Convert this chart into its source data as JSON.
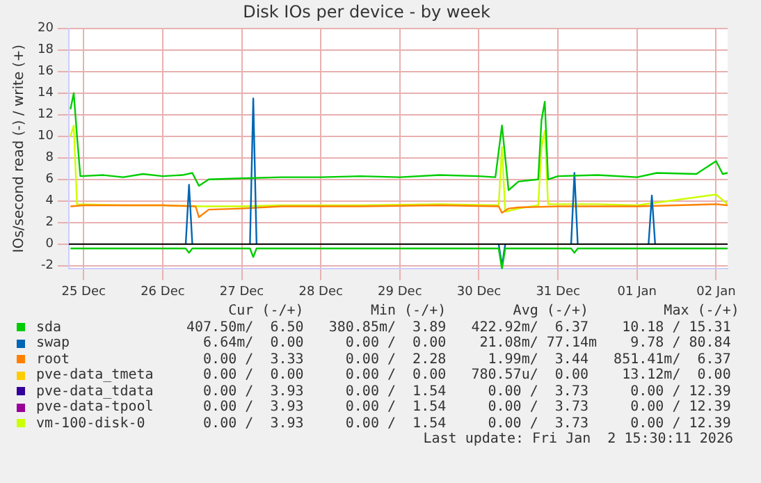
{
  "chart_data": {
    "type": "line",
    "title": "Disk IOs per device - by week",
    "ylabel": "IOs/second read (-) / write (+)",
    "xlim": [
      "2025-12-25T07:30",
      "2026-01-02T15:30"
    ],
    "xticks": [
      {
        "value": "2025-12-25T12:00",
        "label": "25 Dec"
      },
      {
        "value": "2025-12-26T12:00",
        "label": "26 Dec"
      },
      {
        "value": "2025-12-27T12:00",
        "label": "27 Dec"
      },
      {
        "value": "2025-12-28T12:00",
        "label": "28 Dec"
      },
      {
        "value": "2025-12-29T12:00",
        "label": "29 Dec"
      },
      {
        "value": "2025-12-30T12:00",
        "label": "30 Dec"
      },
      {
        "value": "2025-12-31T12:00",
        "label": "31 Dec"
      },
      {
        "value": "2026-01-01T12:00",
        "label": "01 Jan"
      },
      {
        "value": "2026-01-02T12:00",
        "label": "02 Jan"
      }
    ],
    "ylim": [
      -2.3,
      20
    ],
    "yticks": [
      -2,
      0,
      2,
      4,
      6,
      8,
      10,
      12,
      14,
      16,
      18,
      20
    ],
    "grid": true,
    "legend": "bottom",
    "marker": "none",
    "line_style": "solid",
    "ref_lines": [
      {
        "axis": "y",
        "value": 0,
        "color": "#000000"
      }
    ],
    "series": [
      {
        "name": "sda",
        "color": "#00cc00",
        "x": [
          "2025-12-25T08:00",
          "2025-12-25T09:00",
          "2025-12-25T10:00",
          "2025-12-25T11:00",
          "2025-12-25T18:00",
          "2025-12-26T00:00",
          "2025-12-26T06:00",
          "2025-12-26T12:00",
          "2025-12-26T18:00",
          "2025-12-26T21:00",
          "2025-12-26T23:00",
          "2025-12-27T02:00",
          "2025-12-27T12:00",
          "2025-12-28T00:00",
          "2025-12-28T12:00",
          "2025-12-29T00:00",
          "2025-12-29T12:00",
          "2025-12-30T00:00",
          "2025-12-30T12:00",
          "2025-12-30T17:00",
          "2025-12-30T19:00",
          "2025-12-30T21:00",
          "2025-12-31T00:00",
          "2025-12-31T06:00",
          "2025-12-31T07:00",
          "2025-12-31T08:00",
          "2025-12-31T09:00",
          "2025-12-31T12:00",
          "2026-01-01T00:00",
          "2026-01-01T12:00",
          "2026-01-01T18:00",
          "2026-01-02T06:00",
          "2026-01-02T12:00",
          "2026-01-02T14:00",
          "2026-01-02T15:30"
        ],
        "values": [
          12.5,
          14,
          10,
          6.3,
          6.4,
          6.2,
          6.5,
          6.3,
          6.4,
          6.6,
          5.4,
          6.0,
          6.1,
          6.2,
          6.2,
          6.3,
          6.2,
          6.4,
          6.3,
          6.2,
          11,
          5.0,
          5.8,
          6.0,
          11.5,
          13.2,
          6.0,
          6.3,
          6.4,
          6.2,
          6.6,
          6.5,
          7.7,
          6.5,
          6.6
        ]
      },
      {
        "color": "#00cc00",
        "x": [
          "2025-12-25T08:00",
          "2025-12-26T19:00",
          "2025-12-26T20:00",
          "2025-12-26T21:00",
          "2025-12-27T14:30",
          "2025-12-27T15:30",
          "2025-12-27T16:30",
          "2025-12-30T18:00",
          "2025-12-30T19:00",
          "2025-12-30T20:00",
          "2025-12-31T16:00",
          "2025-12-31T17:00",
          "2025-12-31T18:00",
          "2026-01-02T15:30"
        ],
        "values": [
          -0.4,
          -0.4,
          -0.8,
          -0.4,
          -0.4,
          -1.2,
          -0.4,
          -0.4,
          -2.3,
          -0.4,
          -0.4,
          -0.8,
          -0.4,
          -0.4
        ]
      },
      {
        "name": "swap",
        "color": "#0066b3",
        "x": [
          "2025-12-26T19:00",
          "2025-12-26T20:00",
          "2025-12-26T21:00",
          "2025-12-27T00:00",
          "2025-12-27T14:30",
          "2025-12-27T15:30",
          "2025-12-27T16:30",
          "2025-12-29T00:00",
          "2025-12-30T18:00",
          "2025-12-30T19:00",
          "2025-12-30T20:00",
          "2025-12-31T00:00",
          "2025-12-31T16:00",
          "2025-12-31T17:00",
          "2025-12-31T18:00",
          "2026-01-01T00:00",
          "2026-01-01T15:30",
          "2026-01-01T16:30",
          "2026-01-01T17:30"
        ],
        "values": [
          0,
          5.5,
          0,
          null,
          0,
          13.5,
          0,
          null,
          0,
          -2.0,
          0,
          null,
          0,
          6.6,
          0,
          null,
          0,
          4.5,
          0
        ]
      },
      {
        "name": "root",
        "color": "#ff8000",
        "x": [
          "2025-12-25T08:00",
          "2025-12-25T12:00",
          "2025-12-26T12:00",
          "2025-12-26T22:00",
          "2025-12-26T23:00",
          "2025-12-27T02:00",
          "2025-12-27T12:00",
          "2025-12-28T00:00",
          "2025-12-29T00:00",
          "2025-12-30T00:00",
          "2025-12-30T18:00",
          "2025-12-30T19:00",
          "2025-12-30T21:00",
          "2025-12-31T00:00",
          "2025-12-31T12:00",
          "2026-01-01T12:00",
          "2026-01-02T12:00",
          "2026-01-02T15:30"
        ],
        "values": [
          3.5,
          3.6,
          3.6,
          3.5,
          2.5,
          3.2,
          3.3,
          3.5,
          3.5,
          3.6,
          3.5,
          2.9,
          3.3,
          3.4,
          3.5,
          3.5,
          3.7,
          3.6
        ]
      },
      {
        "name": "pve-data_tmeta",
        "color": "#ffcc00"
      },
      {
        "name": "pve-data_tdata",
        "color": "#330099"
      },
      {
        "name": "pve-data-tpool",
        "color": "#990099"
      },
      {
        "name": "vm-100-disk-0",
        "color": "#ccff00",
        "x": [
          "2025-12-25T08:00",
          "2025-12-25T09:00",
          "2025-12-25T10:00",
          "2025-12-26T00:00",
          "2025-12-26T12:00",
          "2025-12-27T00:00",
          "2025-12-27T12:00",
          "2025-12-28T00:00",
          "2025-12-29T00:00",
          "2025-12-30T00:00",
          "2025-12-30T18:00",
          "2025-12-30T19:00",
          "2025-12-30T20:00",
          "2025-12-31T00:00",
          "2025-12-31T06:00",
          "2025-12-31T07:00",
          "2025-12-31T08:00",
          "2025-12-31T09:00",
          "2026-01-01T00:00",
          "2026-01-01T12:00",
          "2026-01-02T12:00",
          "2026-01-02T15:30"
        ],
        "values": [
          10,
          11,
          3.7,
          3.6,
          3.6,
          3.5,
          3.5,
          3.6,
          3.6,
          3.7,
          3.6,
          9,
          3.0,
          3.3,
          3.6,
          9,
          10.5,
          3.7,
          3.7,
          3.6,
          4.6,
          3.7
        ]
      }
    ],
    "annotations": [
      "     Cur (-/+)        Min (-/+)        Avg (-/+)         Max (-/+)",
      "407.50m/  6.50   380.85m/  3.89   422.92m/  6.37    10.18 / 15.31",
      "  6.64m/  0.00     0.00 /  0.00    21.08m/ 77.14m    9.78 / 80.84",
      "  0.00 /  3.33     0.00 /  2.28     1.99m/  3.44   851.41m/  6.37",
      "  0.00 /  0.00     0.00 /  0.00   780.57u/  0.00    13.12m/  0.00",
      "  0.00 /  3.93     0.00 /  1.54     0.00 /  3.73     0.00 / 12.39",
      "  0.00 /  3.93     0.00 /  1.54     0.00 /  3.73     0.00 / 12.39",
      "  0.00 /  3.93     0.00 /  1.54     0.00 /  3.73     0.00 / 12.39",
      "Last update: Fri Jan  2 15:30:11 2026"
    ]
  }
}
